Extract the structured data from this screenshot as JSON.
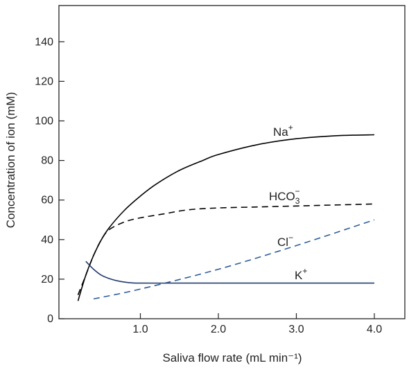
{
  "chart_data": {
    "type": "line",
    "title": "",
    "xlabel": "Saliva flow rate (mL min⁻¹)",
    "ylabel": "Concentration of ion (mM)",
    "xlim": [
      0,
      4.2
    ],
    "ylim": [
      0,
      150
    ],
    "xticks": [
      1.0,
      2.0,
      3.0,
      4.0
    ],
    "xtick_labels": [
      "1.0",
      "2.0",
      "3.0",
      "4.0"
    ],
    "yticks": [
      0,
      20,
      40,
      60,
      80,
      100,
      120,
      140
    ],
    "ytick_labels": [
      "0",
      "20",
      "40",
      "60",
      "80",
      "100",
      "120",
      "140"
    ],
    "grid": false,
    "legend": "none",
    "series": [
      {
        "name": "Na",
        "label_sup": "+",
        "label_sub": "",
        "color": "#000000",
        "dash": "solid",
        "x": [
          0.2,
          0.3,
          0.4,
          0.5,
          0.6,
          0.8,
          1.0,
          1.2,
          1.5,
          1.8,
          2.0,
          2.5,
          3.0,
          3.5,
          4.0
        ],
        "y": [
          9,
          22,
          32,
          40,
          46,
          55,
          62,
          68,
          75,
          80,
          83,
          88,
          91,
          92.5,
          93
        ]
      },
      {
        "name": "HCO",
        "label_sup": "−",
        "label_sub": "3",
        "color": "#000000",
        "dash": "dashed",
        "x": [
          0.2,
          0.3,
          0.4,
          0.5,
          0.6,
          0.8,
          1.0,
          1.3,
          1.6,
          2.0,
          2.5,
          3.0,
          3.5,
          4.0
        ],
        "y": [
          12,
          22,
          32,
          40,
          45,
          49,
          51,
          53,
          55,
          56,
          56.5,
          57,
          57.5,
          58
        ]
      },
      {
        "name": "Cl",
        "label_sup": "−",
        "label_sub": "",
        "color": "#2e5d9a",
        "dash": "dashed",
        "x": [
          0.4,
          1.0,
          2.0,
          3.0,
          4.0
        ],
        "y": [
          10,
          15,
          25,
          37,
          50
        ]
      },
      {
        "name": "K",
        "label_sup": "+",
        "label_sub": "",
        "color": "#1f3a6b",
        "dash": "solid",
        "x": [
          0.3,
          0.4,
          0.5,
          0.6,
          0.7,
          0.8,
          0.9,
          1.0,
          1.5,
          2.0,
          3.0,
          4.0
        ],
        "y": [
          29,
          25,
          22,
          20.3,
          19.2,
          18.5,
          18.1,
          18,
          18,
          18,
          18,
          18
        ]
      }
    ]
  }
}
